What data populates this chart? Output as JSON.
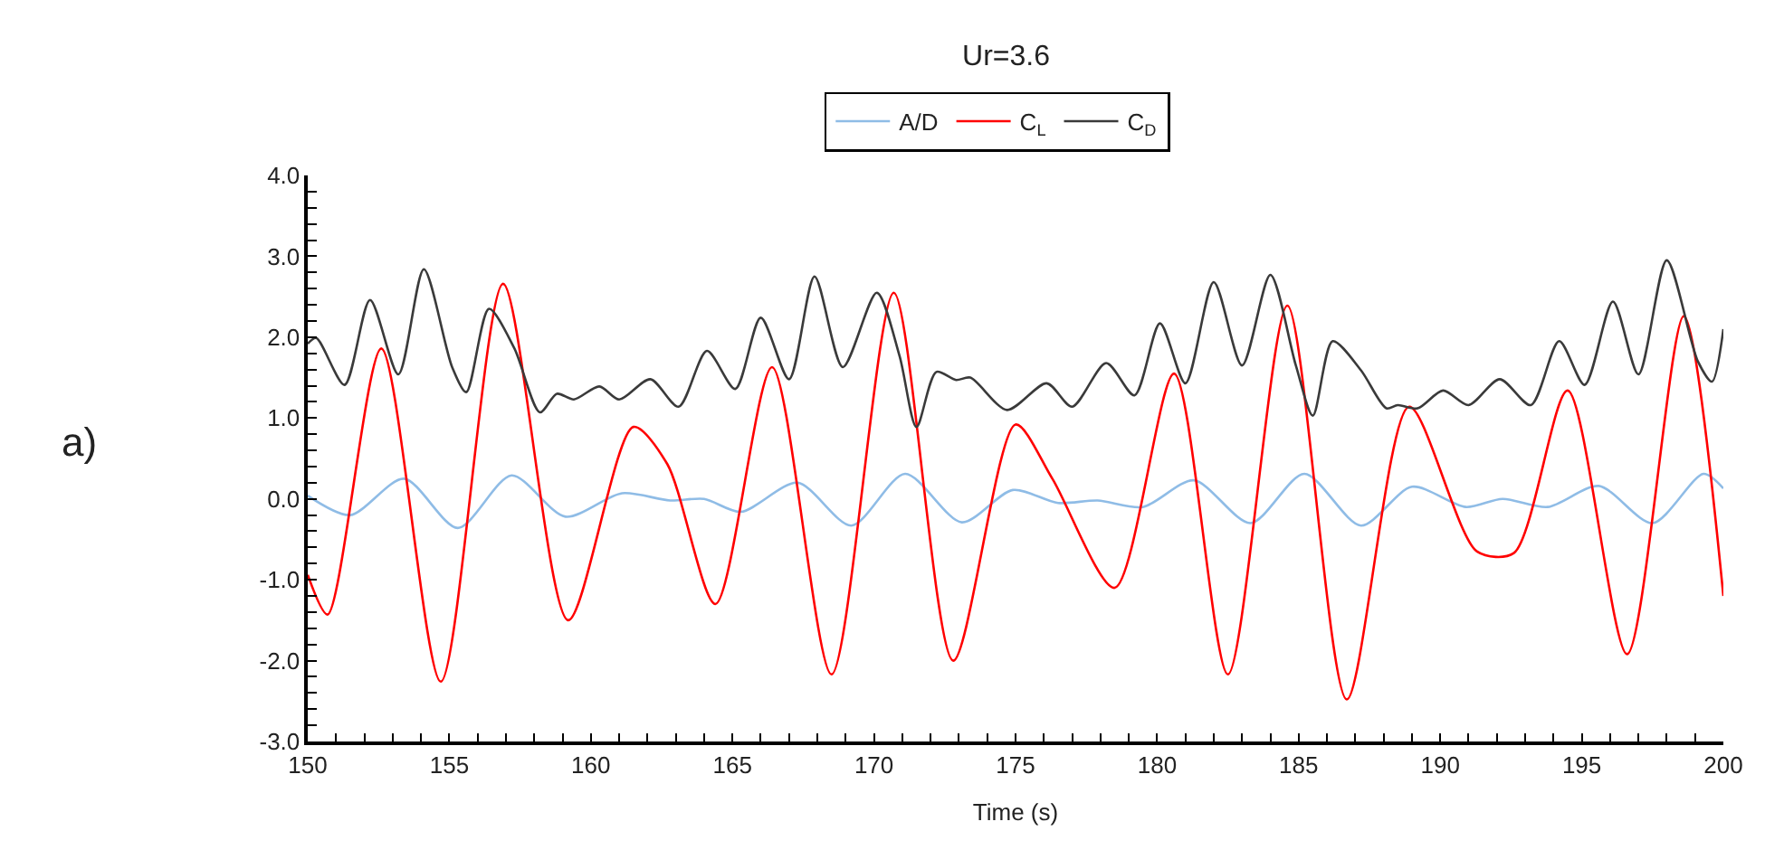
{
  "chart_data": {
    "type": "line",
    "title": "Ur=3.6",
    "xlabel": "Time (s)",
    "annotations": [
      "a)"
    ],
    "legend": "top",
    "marker": "none",
    "line_style": "solid",
    "xlim": [
      150,
      200
    ],
    "ylim": [
      -3.0,
      4.0
    ],
    "xticks": [
      150,
      {
        "value": 151,
        "label": null
      },
      {
        "value": 152,
        "label": null
      },
      {
        "value": 153,
        "label": null
      },
      {
        "value": 154,
        "label": null
      },
      155,
      {
        "value": 156,
        "label": null
      },
      {
        "value": 157,
        "label": null
      },
      {
        "value": 158,
        "label": null
      },
      {
        "value": 159,
        "label": null
      },
      160,
      {
        "value": 161,
        "label": null
      },
      {
        "value": 162,
        "label": null
      },
      {
        "value": 163,
        "label": null
      },
      {
        "value": 164,
        "label": null
      },
      165,
      {
        "value": 166,
        "label": null
      },
      {
        "value": 167,
        "label": null
      },
      {
        "value": 168,
        "label": null
      },
      {
        "value": 169,
        "label": null
      },
      170,
      {
        "value": 171,
        "label": null
      },
      {
        "value": 172,
        "label": null
      },
      {
        "value": 173,
        "label": null
      },
      {
        "value": 174,
        "label": null
      },
      175,
      {
        "value": 176,
        "label": null
      },
      {
        "value": 177,
        "label": null
      },
      {
        "value": 178,
        "label": null
      },
      {
        "value": 179,
        "label": null
      },
      180,
      {
        "value": 181,
        "label": null
      },
      {
        "value": 182,
        "label": null
      },
      {
        "value": 183,
        "label": null
      },
      {
        "value": 184,
        "label": null
      },
      185,
      {
        "value": 186,
        "label": null
      },
      {
        "value": 187,
        "label": null
      },
      {
        "value": 188,
        "label": null
      },
      {
        "value": 189,
        "label": null
      },
      190,
      {
        "value": 191,
        "label": null
      },
      {
        "value": 192,
        "label": null
      },
      {
        "value": 193,
        "label": null
      },
      {
        "value": 194,
        "label": null
      },
      195,
      {
        "value": 196,
        "label": null
      },
      {
        "value": 197,
        "label": null
      },
      {
        "value": 198,
        "label": null
      },
      {
        "value": 199,
        "label": null
      },
      200
    ],
    "yticks": [
      {
        "value": -3.0,
        "label": "-3.0"
      },
      {
        "value": -2.8,
        "label": null
      },
      {
        "value": -2.6,
        "label": null
      },
      {
        "value": -2.4,
        "label": null
      },
      {
        "value": -2.2,
        "label": null
      },
      {
        "value": -2.0,
        "label": "-2.0"
      },
      {
        "value": -1.8,
        "label": null
      },
      {
        "value": -1.6,
        "label": null
      },
      {
        "value": -1.4,
        "label": null
      },
      {
        "value": -1.2,
        "label": null
      },
      {
        "value": -1.0,
        "label": "-1.0"
      },
      {
        "value": -0.8,
        "label": null
      },
      {
        "value": -0.6,
        "label": null
      },
      {
        "value": -0.4,
        "label": null
      },
      {
        "value": -0.2,
        "label": null
      },
      {
        "value": 0.0,
        "label": "0.0"
      },
      {
        "value": 0.2,
        "label": null
      },
      {
        "value": 0.4,
        "label": null
      },
      {
        "value": 0.6,
        "label": null
      },
      {
        "value": 0.8,
        "label": null
      },
      {
        "value": 1.0,
        "label": "1.0"
      },
      {
        "value": 1.2,
        "label": null
      },
      {
        "value": 1.4,
        "label": null
      },
      {
        "value": 1.6,
        "label": null
      },
      {
        "value": 1.8,
        "label": null
      },
      {
        "value": 2.0,
        "label": "2.0"
      },
      {
        "value": 2.2,
        "label": null
      },
      {
        "value": 2.4,
        "label": null
      },
      {
        "value": 2.6,
        "label": null
      },
      {
        "value": 2.8,
        "label": null
      },
      {
        "value": 3.0,
        "label": "3.0"
      },
      {
        "value": 3.2,
        "label": null
      },
      {
        "value": 3.4,
        "label": null
      },
      {
        "value": 3.6,
        "label": null
      },
      {
        "value": 3.8,
        "label": null
      },
      {
        "value": 4.0,
        "label": "4.0"
      }
    ],
    "series": [
      {
        "name": "A/D",
        "color": "#8fbce6",
        "x": [
          150,
          151.5,
          153.4,
          155.3,
          157.2,
          159.1,
          161.1,
          162.8,
          164.0,
          165.3,
          167.3,
          169.2,
          171.1,
          173.1,
          174.9,
          176.5,
          177.9,
          179.5,
          181.3,
          183.3,
          185.2,
          187.2,
          189.0,
          190.9,
          192.2,
          193.8,
          195.6,
          197.5,
          199.3,
          200
        ],
        "values": [
          0.04,
          -0.2,
          0.25,
          -0.36,
          0.29,
          -0.22,
          0.07,
          -0.02,
          0.0,
          -0.16,
          0.2,
          -0.33,
          0.31,
          -0.29,
          0.11,
          -0.05,
          -0.02,
          -0.1,
          0.23,
          -0.3,
          0.31,
          -0.33,
          0.15,
          -0.1,
          0.0,
          -0.1,
          0.16,
          -0.3,
          0.31,
          0.13
        ]
      },
      {
        "name": "C$_{L}$",
        "color": "#ff0000",
        "x": [
          150,
          150.7,
          152.6,
          154.7,
          156.9,
          159.2,
          161.5,
          162.7,
          164.4,
          166.4,
          168.5,
          170.7,
          172.8,
          175.0,
          176.3,
          178.5,
          180.6,
          182.5,
          184.6,
          186.7,
          188.9,
          191.3,
          192.6,
          194.5,
          196.6,
          198.6,
          200
        ],
        "values": [
          -0.94,
          -1.43,
          1.86,
          -2.26,
          2.66,
          -1.5,
          0.89,
          0.43,
          -1.3,
          1.63,
          -2.17,
          2.55,
          -2.0,
          0.92,
          0.25,
          -1.1,
          1.55,
          -2.17,
          2.39,
          -2.48,
          1.14,
          -0.65,
          -0.67,
          1.34,
          -1.92,
          2.26,
          -1.2
        ]
      },
      {
        "name": "C$_{D}$",
        "color": "#3a3a3a",
        "x": [
          150,
          150.3,
          151.3,
          152.2,
          153.2,
          154.1,
          155.1,
          155.6,
          156.4,
          157.3,
          158.2,
          158.8,
          159.4,
          160.3,
          161.0,
          162.1,
          163.1,
          164.1,
          165.1,
          166.0,
          167.0,
          167.9,
          168.9,
          170.1,
          170.9,
          171.5,
          172.2,
          172.9,
          173.4,
          174.7,
          176.1,
          177.0,
          178.2,
          179.2,
          180.1,
          181.0,
          182.0,
          183.0,
          184.0,
          184.9,
          185.5,
          186.2,
          187.2,
          188.1,
          188.5,
          189.2,
          190.1,
          191.0,
          192.1,
          193.2,
          194.2,
          195.1,
          196.1,
          197.0,
          198.0,
          199.1,
          199.6,
          200
        ],
        "values": [
          1.92,
          1.99,
          1.41,
          2.46,
          1.54,
          2.84,
          1.63,
          1.32,
          2.35,
          1.86,
          1.07,
          1.3,
          1.23,
          1.39,
          1.23,
          1.48,
          1.14,
          1.83,
          1.36,
          2.24,
          1.48,
          2.75,
          1.63,
          2.55,
          1.77,
          0.89,
          1.57,
          1.47,
          1.5,
          1.1,
          1.43,
          1.14,
          1.68,
          1.28,
          2.17,
          1.43,
          2.68,
          1.65,
          2.77,
          1.65,
          1.03,
          1.95,
          1.59,
          1.12,
          1.16,
          1.12,
          1.34,
          1.16,
          1.48,
          1.16,
          1.95,
          1.41,
          2.44,
          1.54,
          2.95,
          1.7,
          1.45,
          2.1
        ]
      }
    ]
  }
}
